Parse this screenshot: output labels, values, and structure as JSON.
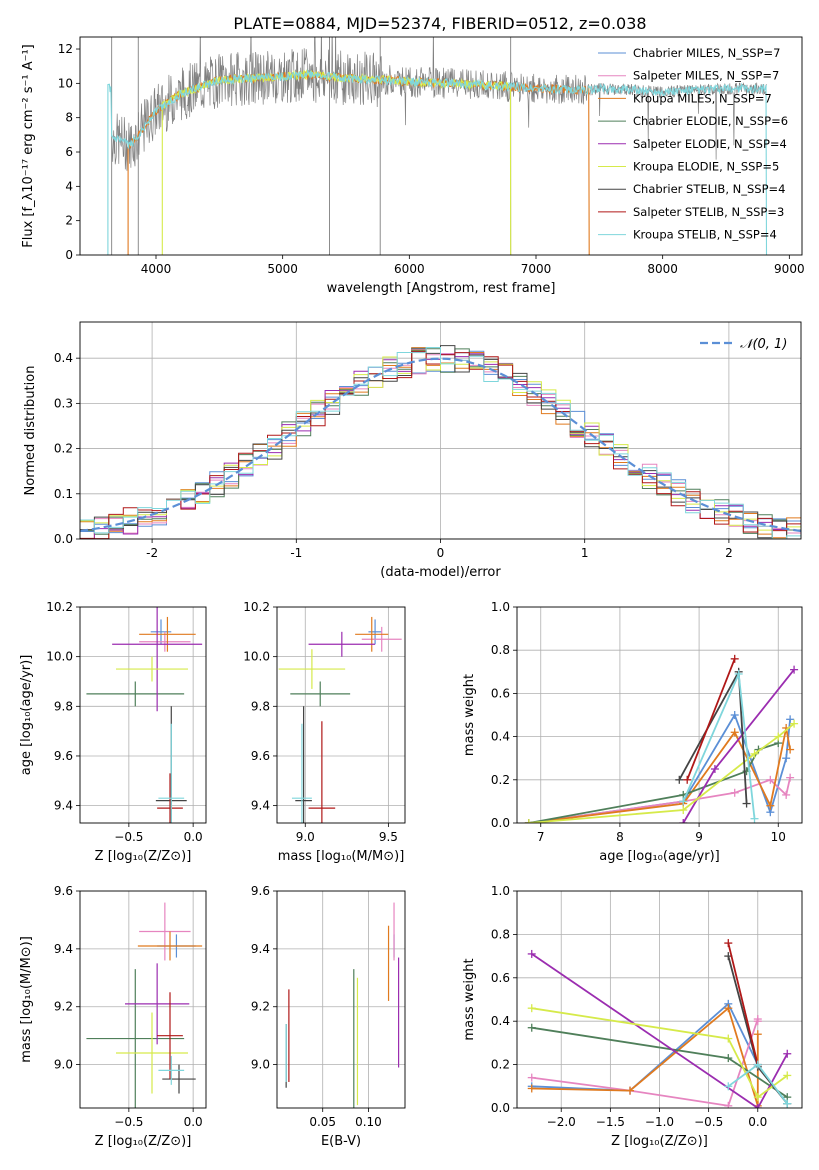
{
  "figure": {
    "title": "PLATE=0884, MJD=52374, FIBERID=0512, z=0.038"
  },
  "colors": {
    "Chabrier MILES": "#5b8fd6",
    "Salpeter MILES": "#e685c0",
    "Kroupa MILES": "#e07a1f",
    "Chabrier ELODIE": "#4f7f5a",
    "Salpeter ELODIE": "#9b2db0",
    "Kroupa ELODIE": "#d6ea4a",
    "Chabrier STELIB": "#444444",
    "Salpeter STELIB": "#b01818",
    "Kroupa STELIB": "#7fd6dc",
    "data": "#808080",
    "normal": "#5b8fd6"
  },
  "chart_data": [
    {
      "id": "spectrum",
      "type": "line",
      "xlabel": "wavelength [Angstrom, rest frame]",
      "ylabel": "Flux [f_λ10⁻¹⁷ erg cm⁻² s⁻¹ A⁻¹]",
      "xlim": [
        3400,
        9100
      ],
      "ylim": [
        0,
        12.7
      ],
      "xticks": [
        4000,
        5000,
        6000,
        7000,
        8000,
        9000
      ],
      "yticks": [
        0,
        2,
        4,
        6,
        8,
        10,
        12
      ],
      "legend_loc": "upper right",
      "legend": [
        "Chabrier MILES, N_SSP=7",
        "Salpeter MILES, N_SSP=7",
        "Kroupa MILES, N_SSP=7",
        "Chabrier ELODIE, N_SSP=6",
        "Salpeter ELODIE, N_SSP=4",
        "Kroupa ELODIE, N_SSP=5",
        "Chabrier STELIB, N_SSP=4",
        "Salpeter STELIB, N_SSP=3",
        "Kroupa STELIB, N_SSP=4"
      ],
      "model_curve": {
        "x": [
          3650,
          3800,
          3900,
          4000,
          4200,
          4500,
          4800,
          5000,
          5200,
          5500,
          5800,
          6000,
          6300,
          6600,
          7000,
          7400,
          7500,
          7800,
          8000,
          8300,
          8600,
          8800
        ],
        "y": [
          6.8,
          6.4,
          7.4,
          8.4,
          9.4,
          10.2,
          10.3,
          10.4,
          10.5,
          10.3,
          10.2,
          10.1,
          10.0,
          9.9,
          9.7,
          9.6,
          9.7,
          9.6,
          9.5,
          9.6,
          9.7,
          9.7
        ]
      },
      "range_ends": {
        "MILES": [
          3780,
          7420
        ],
        "ELODIE": [
          4050,
          6800
        ],
        "STELIB": [
          3620,
          8820
        ]
      }
    },
    {
      "id": "residuals",
      "type": "histogram",
      "xlabel": "(data-model)/error",
      "ylabel": "Normed distribution",
      "xlim": [
        -2.5,
        2.5
      ],
      "ylim": [
        0,
        0.48
      ],
      "xticks": [
        -2,
        -1,
        0,
        1,
        2
      ],
      "yticks": [
        0.0,
        0.1,
        0.2,
        0.3,
        0.4
      ],
      "legend": "𝒩(0, 1)",
      "legend_loc": "upper right",
      "bin_width": 0.1,
      "grid": true
    },
    {
      "id": "age-vs-Z",
      "type": "errorbar",
      "xlabel": "Z [log₁₀(Z/Z⊙)]",
      "ylabel": "age  [log₁₀(age/yr)]",
      "xlim": [
        -0.88,
        0.1
      ],
      "ylim": [
        9.33,
        10.2
      ],
      "xticks": [
        -0.5,
        0.0
      ],
      "xticklabels": [
        "−0.5",
        "0.0"
      ],
      "yticks": [
        9.4,
        9.6,
        9.8,
        10.0,
        10.2
      ],
      "grid": true,
      "points": [
        {
          "series": "Chabrier MILES",
          "x": -0.25,
          "y": 10.1,
          "xerr": 0.08,
          "yerr": 0.05
        },
        {
          "series": "Salpeter MILES",
          "x": -0.22,
          "y": 10.06,
          "xerr": 0.2,
          "yerr": 0.04
        },
        {
          "series": "Kroupa MILES",
          "x": -0.2,
          "y": 10.09,
          "xerr": 0.22,
          "yerr": 0.07
        },
        {
          "series": "Chabrier ELODIE",
          "x": -0.45,
          "y": 9.85,
          "xerr": 0.38,
          "yerr": 0.05
        },
        {
          "series": "Salpeter ELODIE",
          "x": -0.28,
          "y": 10.05,
          "xerr": 0.35,
          "yerr": 0.27
        },
        {
          "series": "Kroupa ELODIE",
          "x": -0.32,
          "y": 9.95,
          "xerr": 0.28,
          "yerr": 0.05
        },
        {
          "series": "Chabrier STELIB",
          "x": -0.17,
          "y": 9.42,
          "xerr": 0.12,
          "yerr": 0.38
        },
        {
          "series": "Salpeter STELIB",
          "x": -0.18,
          "y": 9.39,
          "xerr": 0.1,
          "yerr": 0.14
        },
        {
          "series": "Kroupa STELIB",
          "x": -0.17,
          "y": 9.43,
          "xerr": 0.1,
          "yerr": 0.3
        }
      ]
    },
    {
      "id": "age-vs-mass",
      "type": "errorbar",
      "xlabel": "mass [log₁₀(M/M⊙)]",
      "ylabel": "",
      "xlim": [
        8.83,
        9.6
      ],
      "ylim": [
        9.33,
        10.2
      ],
      "xticks": [
        9.0,
        9.5
      ],
      "xticklabels": [
        "9.0",
        "9.5"
      ],
      "yticks": [
        9.4,
        9.6,
        9.8,
        10.0,
        10.2
      ],
      "grid": true,
      "points": [
        {
          "series": "Chabrier MILES",
          "x": 9.42,
          "y": 10.1,
          "xerr": 0.04,
          "yerr": 0.05
        },
        {
          "series": "Salpeter MILES",
          "x": 9.46,
          "y": 10.07,
          "xerr": 0.12,
          "yerr": 0.05
        },
        {
          "series": "Kroupa MILES",
          "x": 9.4,
          "y": 10.09,
          "xerr": 0.1,
          "yerr": 0.07
        },
        {
          "series": "Chabrier ELODIE",
          "x": 9.09,
          "y": 9.85,
          "xerr": 0.18,
          "yerr": 0.05
        },
        {
          "series": "Salpeter ELODIE",
          "x": 9.22,
          "y": 10.05,
          "xerr": 0.2,
          "yerr": 0.05
        },
        {
          "series": "Kroupa ELODIE",
          "x": 9.04,
          "y": 9.95,
          "xerr": 0.2,
          "yerr": 0.08
        },
        {
          "series": "Chabrier STELIB",
          "x": 8.99,
          "y": 9.42,
          "xerr": 0.05,
          "yerr": 0.38
        },
        {
          "series": "Salpeter STELIB",
          "x": 9.1,
          "y": 9.39,
          "xerr": 0.08,
          "yerr": 0.35
        },
        {
          "series": "Kroupa STELIB",
          "x": 8.98,
          "y": 9.43,
          "xerr": 0.06,
          "yerr": 0.3
        }
      ]
    },
    {
      "id": "weight-vs-age",
      "type": "line",
      "xlabel": "age  [log₁₀(age/yr)]",
      "ylabel": "mass weight",
      "xlim": [
        6.7,
        10.3
      ],
      "ylim": [
        0,
        1.0
      ],
      "xticks": [
        7,
        8,
        9,
        10
      ],
      "yticks": [
        0.0,
        0.2,
        0.4,
        0.6,
        0.8,
        1.0
      ],
      "grid": true,
      "series": [
        {
          "series": "Chabrier MILES",
          "x": [
            6.85,
            8.8,
            9.45,
            9.9,
            10.1,
            10.15
          ],
          "y": [
            0.0,
            0.1,
            0.5,
            0.05,
            0.3,
            0.48
          ]
        },
        {
          "series": "Salpeter MILES",
          "x": [
            6.85,
            8.8,
            9.45,
            9.9,
            10.1,
            10.15
          ],
          "y": [
            0.0,
            0.1,
            0.14,
            0.2,
            0.13,
            0.21
          ]
        },
        {
          "series": "Kroupa MILES",
          "x": [
            6.85,
            8.8,
            9.45,
            9.9,
            10.1,
            10.15
          ],
          "y": [
            0.0,
            0.09,
            0.42,
            0.08,
            0.44,
            0.34
          ]
        },
        {
          "series": "Chabrier ELODIE",
          "x": [
            6.85,
            8.8,
            9.6,
            9.75,
            10.0
          ],
          "y": [
            0.0,
            0.13,
            0.24,
            0.34,
            0.37
          ]
        },
        {
          "series": "Salpeter ELODIE",
          "x": [
            8.8,
            9.2,
            10.2
          ],
          "y": [
            0.0,
            0.25,
            0.71
          ]
        },
        {
          "series": "Kroupa ELODIE",
          "x": [
            6.85,
            8.8,
            9.7,
            10.0,
            10.2
          ],
          "y": [
            0.0,
            0.06,
            0.32,
            0.4,
            0.46
          ]
        },
        {
          "series": "Chabrier STELIB",
          "x": [
            8.75,
            9.5,
            9.6
          ],
          "y": [
            0.2,
            0.7,
            0.09
          ]
        },
        {
          "series": "Salpeter STELIB",
          "x": [
            8.85,
            9.45
          ],
          "y": [
            0.2,
            0.76
          ]
        },
        {
          "series": "Kroupa STELIB",
          "x": [
            8.8,
            9.5,
            9.7
          ],
          "y": [
            0.1,
            0.69,
            0.02
          ]
        }
      ]
    },
    {
      "id": "mass-vs-Z",
      "type": "errorbar",
      "xlabel": "Z [log₁₀(Z/Z⊙)]",
      "ylabel": "mass [log₁₀(M/M⊙)]",
      "xlim": [
        -0.88,
        0.1
      ],
      "ylim": [
        8.85,
        9.6
      ],
      "xticks": [
        -0.5,
        0.0
      ],
      "xticklabels": [
        "−0.5",
        "0.0"
      ],
      "yticks": [
        9.0,
        9.2,
        9.4,
        9.6
      ],
      "grid": true,
      "points": [
        {
          "series": "Chabrier MILES",
          "x": -0.13,
          "y": 9.41,
          "xerr": 0.15,
          "yerr": 0.04
        },
        {
          "series": "Salpeter MILES",
          "x": -0.22,
          "y": 9.46,
          "xerr": 0.2,
          "yerr": 0.1
        },
        {
          "series": "Kroupa MILES",
          "x": -0.18,
          "y": 9.41,
          "xerr": 0.25,
          "yerr": 0.05
        },
        {
          "series": "Chabrier ELODIE",
          "x": -0.45,
          "y": 9.09,
          "xerr": 0.38,
          "yerr": 0.24
        },
        {
          "series": "Salpeter ELODIE",
          "x": -0.28,
          "y": 9.21,
          "xerr": 0.25,
          "yerr": 0.14
        },
        {
          "series": "Kroupa ELODIE",
          "x": -0.32,
          "y": 9.04,
          "xerr": 0.28,
          "yerr": 0.14
        },
        {
          "series": "Chabrier STELIB",
          "x": -0.11,
          "y": 8.95,
          "xerr": 0.13,
          "yerr": 0.05
        },
        {
          "series": "Salpeter STELIB",
          "x": -0.18,
          "y": 9.1,
          "xerr": 0.1,
          "yerr": 0.15
        },
        {
          "series": "Kroupa STELIB",
          "x": -0.17,
          "y": 8.98,
          "xerr": 0.1,
          "yerr": 0.05
        }
      ]
    },
    {
      "id": "mass-vs-EBV",
      "type": "errorbar",
      "xlabel": "E(B-V)",
      "ylabel": "",
      "xlim": [
        0.0,
        0.14
      ],
      "ylim": [
        8.85,
        9.6
      ],
      "xticks": [
        0.05,
        0.1
      ],
      "xticklabels": [
        "0.05",
        "0.10"
      ],
      "yticks": [
        9.0,
        9.2,
        9.4,
        9.6
      ],
      "grid": true,
      "points": [
        {
          "series": "Chabrier MILES",
          "x": 0.128,
          "y": 9.41,
          "xerr": 0,
          "yerr": 0.04
        },
        {
          "series": "Salpeter MILES",
          "x": 0.128,
          "y": 9.46,
          "xerr": 0,
          "yerr": 0.1
        },
        {
          "series": "Kroupa MILES",
          "x": 0.122,
          "y": 9.35,
          "xerr": 0,
          "yerr": 0.13
        },
        {
          "series": "Chabrier ELODIE",
          "x": 0.084,
          "y": 9.09,
          "xerr": 0,
          "yerr": 0.24
        },
        {
          "series": "Salpeter ELODIE",
          "x": 0.133,
          "y": 9.18,
          "xerr": 0,
          "yerr": 0.19
        },
        {
          "series": "Kroupa ELODIE",
          "x": 0.088,
          "y": 9.08,
          "xerr": 0,
          "yerr": 0.22
        },
        {
          "series": "Chabrier STELIB",
          "x": 0.01,
          "y": 9.03,
          "xerr": 0,
          "yerr": 0.11
        },
        {
          "series": "Salpeter STELIB",
          "x": 0.013,
          "y": 9.1,
          "xerr": 0,
          "yerr": 0.16
        },
        {
          "series": "Kroupa STELIB",
          "x": 0.01,
          "y": 9.04,
          "xerr": 0,
          "yerr": 0.1
        }
      ]
    },
    {
      "id": "weight-vs-Z",
      "type": "line",
      "xlabel": "Z [log₁₀(Z/Z⊙)]",
      "ylabel": "mass weight",
      "xlim": [
        -2.45,
        0.45
      ],
      "ylim": [
        0,
        1.0
      ],
      "xticks": [
        -2.0,
        -1.5,
        -1.0,
        -0.5,
        0.0
      ],
      "xticklabels": [
        "−2.0",
        "−1.5",
        "−1.0",
        "−0.5",
        "0.0"
      ],
      "yticks": [
        0.0,
        0.2,
        0.4,
        0.6,
        0.8,
        1.0
      ],
      "grid": true,
      "series": [
        {
          "series": "Chabrier MILES",
          "x": [
            -2.3,
            -1.3,
            -0.3,
            0.0
          ],
          "y": [
            0.1,
            0.08,
            0.48,
            0.2
          ]
        },
        {
          "series": "Salpeter MILES",
          "x": [
            -2.3,
            -1.3,
            -0.3,
            0.0,
            0.0
          ],
          "y": [
            0.14,
            0.08,
            0.01,
            0.41,
            0.4
          ]
        },
        {
          "series": "Kroupa MILES",
          "x": [
            -2.3,
            -1.3,
            -0.3,
            0.0,
            0.0
          ],
          "y": [
            0.09,
            0.08,
            0.46,
            0.01,
            0.34
          ]
        },
        {
          "series": "Chabrier ELODIE",
          "x": [
            -2.3,
            -0.3,
            0.3
          ],
          "y": [
            0.37,
            0.23,
            0.05
          ]
        },
        {
          "series": "Salpeter ELODIE",
          "x": [
            -2.3,
            0.0,
            0.3
          ],
          "y": [
            0.71,
            0.0,
            0.25
          ]
        },
        {
          "series": "Kroupa ELODIE",
          "x": [
            -2.3,
            -0.3,
            0.0,
            0.3
          ],
          "y": [
            0.46,
            0.32,
            0.05,
            0.15
          ]
        },
        {
          "series": "Chabrier STELIB",
          "x": [
            -0.3,
            0.0,
            0.3
          ],
          "y": [
            0.7,
            0.19,
            0.02
          ]
        },
        {
          "series": "Salpeter STELIB",
          "x": [
            -0.3,
            0.0
          ],
          "y": [
            0.76,
            0.2
          ]
        },
        {
          "series": "Kroupa STELIB",
          "x": [
            -0.3,
            0.0,
            0.3
          ],
          "y": [
            0.1,
            0.2,
            0.02
          ]
        }
      ]
    }
  ]
}
